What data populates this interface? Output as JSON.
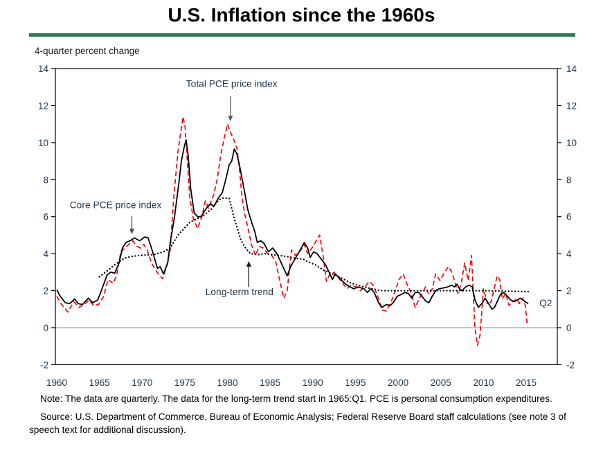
{
  "page": {
    "title": "U.S. Inflation since the 1960s",
    "note": "Note:  The data are quarterly.  The data for the long-term trend start in 1965:Q1.  PCE is personal consumption expenditures.",
    "source": "Source:  U.S. Department of Commerce, Bureau of Economic Analysis; Federal Reserve Board staff calculations (see note 3 of speech text for additional discussion).",
    "divider_color": "#2e7d51"
  },
  "chart_data": {
    "type": "line",
    "title": "U.S. Inflation since the 1960s",
    "unit_label": "4-quarter percent change",
    "xlabel": "",
    "ylabel": "4-quarter percent change",
    "x_axis": {
      "ticks": [
        1960,
        1965,
        1970,
        1975,
        1980,
        1985,
        1990,
        1995,
        2000,
        2005,
        2010,
        2015
      ],
      "range": [
        1959.8,
        2018.6
      ]
    },
    "y_axis": {
      "ticks": [
        14,
        12,
        10,
        8,
        6,
        4,
        2,
        0,
        -2
      ],
      "range": [
        -2,
        14
      ],
      "both_sides": true
    },
    "grid": false,
    "zero_line_color": "#8c8c8c",
    "text_color": "#21374a",
    "series": [
      {
        "name": "Total PCE price index",
        "style": "dashed",
        "color": "#ff0000",
        "x": [
          1960.0,
          1960.5,
          1961.3,
          1962.0,
          1962.6,
          1963.2,
          1963.8,
          1964.3,
          1964.9,
          1965.5,
          1966.0,
          1966.6,
          1967.0,
          1967.5,
          1968.2,
          1968.9,
          1969.4,
          1969.8,
          1970.2,
          1970.6,
          1971.1,
          1971.6,
          1972.0,
          1972.4,
          1972.8,
          1973.3,
          1973.7,
          1974.2,
          1974.8,
          1975.05,
          1975.3,
          1975.6,
          1976.0,
          1976.5,
          1977.0,
          1977.4,
          1977.8,
          1978.4,
          1978.8,
          1979.2,
          1979.6,
          1980.0,
          1980.4,
          1980.8,
          1981.1,
          1981.4,
          1981.7,
          1982.0,
          1982.4,
          1982.8,
          1983.3,
          1983.7,
          1984.2,
          1984.7,
          1985.2,
          1985.7,
          1986.0,
          1986.6,
          1987.0,
          1987.5,
          1988.0,
          1988.6,
          1989.0,
          1989.4,
          1989.9,
          1990.3,
          1990.8,
          1991.2,
          1991.6,
          1992.0,
          1992.5,
          1993.0,
          1993.5,
          1994.0,
          1994.5,
          1995.1,
          1995.6,
          1996.1,
          1996.6,
          1997.1,
          1997.6,
          1998.1,
          1998.6,
          1999.1,
          1999.6,
          2000.1,
          2000.6,
          2001.0,
          2001.5,
          2002.0,
          2002.4,
          2002.9,
          2003.2,
          2003.6,
          2004.0,
          2004.4,
          2004.9,
          2005.4,
          2005.9,
          2006.3,
          2006.7,
          2007.0,
          2007.4,
          2007.8,
          2008.2,
          2008.6,
          2009.0,
          2009.3,
          2009.6,
          2010.0,
          2010.5,
          2010.9,
          2011.3,
          2011.6,
          2011.9,
          2012.2,
          2012.6,
          2013.0,
          2013.4,
          2013.9,
          2014.2,
          2014.6,
          2014.9,
          2015.1,
          2015.25
        ],
        "y": [
          1.7,
          1.3,
          0.85,
          1.4,
          1.1,
          1.25,
          1.5,
          1.2,
          1.25,
          1.7,
          2.6,
          2.4,
          2.8,
          4.1,
          4.4,
          4.7,
          4.4,
          4.3,
          4.5,
          4.2,
          3.5,
          3.1,
          2.85,
          2.65,
          3.2,
          4.2,
          7.0,
          9.5,
          11.4,
          10.8,
          9.0,
          7.0,
          5.9,
          5.35,
          6.0,
          6.85,
          6.45,
          7.2,
          8.0,
          9.3,
          10.2,
          11.0,
          10.5,
          10.1,
          9.7,
          8.6,
          7.1,
          6.2,
          5.4,
          4.5,
          3.9,
          4.4,
          4.3,
          4.0,
          3.9,
          3.5,
          2.8,
          1.6,
          2.0,
          4.2,
          3.9,
          4.2,
          4.5,
          4.0,
          4.3,
          4.6,
          5.0,
          3.9,
          2.5,
          2.9,
          3.0,
          2.7,
          2.4,
          2.1,
          2.3,
          2.2,
          2.0,
          2.2,
          2.5,
          2.3,
          1.7,
          0.95,
          0.9,
          1.3,
          1.9,
          2.6,
          2.9,
          2.4,
          1.9,
          1.1,
          1.5,
          1.9,
          2.2,
          1.8,
          2.1,
          2.9,
          2.55,
          2.95,
          3.3,
          3.0,
          2.4,
          1.85,
          2.4,
          3.5,
          2.55,
          3.9,
          0.0,
          -0.95,
          -0.4,
          2.1,
          1.25,
          1.4,
          2.2,
          2.8,
          2.6,
          1.55,
          1.85,
          1.2,
          1.4,
          1.55,
          1.3,
          1.6,
          1.2,
          0.3,
          0.25
        ]
      },
      {
        "name": "Core PCE price index",
        "style": "solid",
        "color": "#000000",
        "x": [
          1960.0,
          1960.4,
          1961.0,
          1961.5,
          1962.1,
          1962.5,
          1963.0,
          1963.7,
          1964.2,
          1964.8,
          1965.3,
          1965.9,
          1966.3,
          1966.8,
          1967.3,
          1967.7,
          1968.1,
          1968.6,
          1969.1,
          1969.7,
          1970.3,
          1970.7,
          1971.1,
          1971.8,
          1972.1,
          1972.5,
          1973.0,
          1973.3,
          1973.8,
          1974.3,
          1974.6,
          1974.9,
          1975.15,
          1975.4,
          1975.7,
          1976.1,
          1976.5,
          1976.9,
          1977.6,
          1978.0,
          1978.4,
          1979.0,
          1979.4,
          1979.8,
          1980.2,
          1980.5,
          1980.8,
          1981.1,
          1981.4,
          1981.9,
          1982.4,
          1982.9,
          1983.2,
          1983.5,
          1983.9,
          1984.3,
          1984.8,
          1985.3,
          1985.8,
          1986.2,
          1986.7,
          1987.0,
          1987.4,
          1987.9,
          1988.4,
          1989.0,
          1989.4,
          1989.7,
          1990.1,
          1990.5,
          1991.0,
          1991.5,
          1992.0,
          1992.3,
          1992.6,
          1993.0,
          1993.5,
          1994.0,
          1994.8,
          1995.3,
          1996.0,
          1996.4,
          1996.8,
          1997.2,
          1997.7,
          1998.1,
          1998.6,
          1999.1,
          1999.5,
          1999.9,
          2000.4,
          2000.8,
          2001.2,
          2001.6,
          2002.0,
          2002.4,
          2002.8,
          2003.2,
          2003.6,
          2004.0,
          2004.4,
          2004.8,
          2005.3,
          2005.8,
          2006.3,
          2006.6,
          2006.9,
          2007.2,
          2007.5,
          2007.9,
          2008.3,
          2008.7,
          2009.0,
          2009.4,
          2009.8,
          2010.2,
          2010.6,
          2011.0,
          2011.3,
          2011.7,
          2012.0,
          2012.4,
          2012.8,
          2013.2,
          2013.6,
          2014.0,
          2014.3,
          2014.6,
          2014.9,
          2015.25
        ],
        "y": [
          2.05,
          1.7,
          1.35,
          1.3,
          1.55,
          1.3,
          1.25,
          1.6,
          1.35,
          1.5,
          2.1,
          2.85,
          3.0,
          2.95,
          3.5,
          4.3,
          4.6,
          4.7,
          4.85,
          4.7,
          4.9,
          4.85,
          4.3,
          3.2,
          3.3,
          2.9,
          3.5,
          4.6,
          6.0,
          7.8,
          9.0,
          9.7,
          10.15,
          9.3,
          7.5,
          6.2,
          6.0,
          6.0,
          6.5,
          6.7,
          6.55,
          7.05,
          7.3,
          8.0,
          8.8,
          9.0,
          9.65,
          9.4,
          8.8,
          7.6,
          6.35,
          5.6,
          5.2,
          4.6,
          4.7,
          4.55,
          4.1,
          4.3,
          4.0,
          3.6,
          3.1,
          2.8,
          3.3,
          3.7,
          4.1,
          4.6,
          4.3,
          3.8,
          4.1,
          4.0,
          3.7,
          3.4,
          2.9,
          2.6,
          2.9,
          2.75,
          2.5,
          2.3,
          2.1,
          2.2,
          2.1,
          1.9,
          2.1,
          1.9,
          1.35,
          1.1,
          1.25,
          1.2,
          1.4,
          1.7,
          1.8,
          1.9,
          1.85,
          1.6,
          1.9,
          1.9,
          1.7,
          1.45,
          1.35,
          1.7,
          2.0,
          2.1,
          2.15,
          2.2,
          2.3,
          2.2,
          2.35,
          2.1,
          2.0,
          2.2,
          2.3,
          2.2,
          1.5,
          1.1,
          1.3,
          1.6,
          1.3,
          1.0,
          1.1,
          1.5,
          1.8,
          1.9,
          1.7,
          1.5,
          1.4,
          1.5,
          1.6,
          1.5,
          1.4,
          1.3
        ]
      },
      {
        "name": "Long-term trend",
        "style": "dotted",
        "color": "#000000",
        "x": [
          1965.0,
          1965.7,
          1966.8,
          1967.9,
          1968.7,
          1970.0,
          1971.4,
          1972.5,
          1973.3,
          1974.2,
          1975.6,
          1976.5,
          1977.3,
          1978.1,
          1979.0,
          1979.4,
          1980.2,
          1980.8,
          1981.6,
          1982.2,
          1982.7,
          1983.6,
          1984.4,
          1985.2,
          1986.1,
          1986.9,
          1988.0,
          1988.9,
          1989.5,
          1990.3,
          1991.3,
          1992.1,
          1992.9,
          1993.7,
          1994.5,
          1995.3,
          1996.1,
          1996.9,
          1998.0,
          2000.0,
          2005.0,
          2010.0,
          2015.3
        ],
        "y": [
          2.75,
          3.0,
          3.4,
          3.75,
          3.85,
          3.92,
          3.95,
          4.1,
          4.3,
          5.0,
          5.7,
          5.9,
          6.1,
          6.4,
          6.9,
          7.0,
          7.0,
          5.9,
          4.7,
          4.25,
          4.0,
          3.95,
          4.0,
          3.95,
          3.9,
          3.85,
          3.75,
          3.7,
          3.55,
          3.4,
          3.1,
          2.95,
          2.8,
          2.6,
          2.4,
          2.3,
          2.2,
          2.1,
          2.0,
          2.0,
          2.0,
          2.0,
          1.95
        ]
      }
    ],
    "annotations": [
      {
        "id": "total-pce-label",
        "text": "Total PCE price index",
        "x": 1980.5,
        "y": 13.15,
        "anchor": "middle",
        "arrow": {
          "x": 1980.35,
          "y_from": 12.5,
          "y_to": 11.15,
          "color": "#5a5a5a"
        }
      },
      {
        "id": "core-pce-label",
        "text": "Core PCE price index",
        "x": 1966.9,
        "y": 6.6,
        "anchor": "middle",
        "arrow": {
          "x": 1968.8,
          "y_from": 6.05,
          "y_to": 5.05,
          "color": "#4a4a4a"
        }
      },
      {
        "id": "long-term-trend-label",
        "text": "Long-term trend",
        "x": 1981.4,
        "y": 1.9,
        "anchor": "middle",
        "arrow": {
          "x": 1982.5,
          "y_from": 2.2,
          "y_to": 3.6,
          "color": "#1a1a1a"
        }
      },
      {
        "id": "q2-label",
        "text": "Q2",
        "x": 2016.55,
        "y": 1.3,
        "anchor": "start",
        "arrow": null
      }
    ]
  }
}
